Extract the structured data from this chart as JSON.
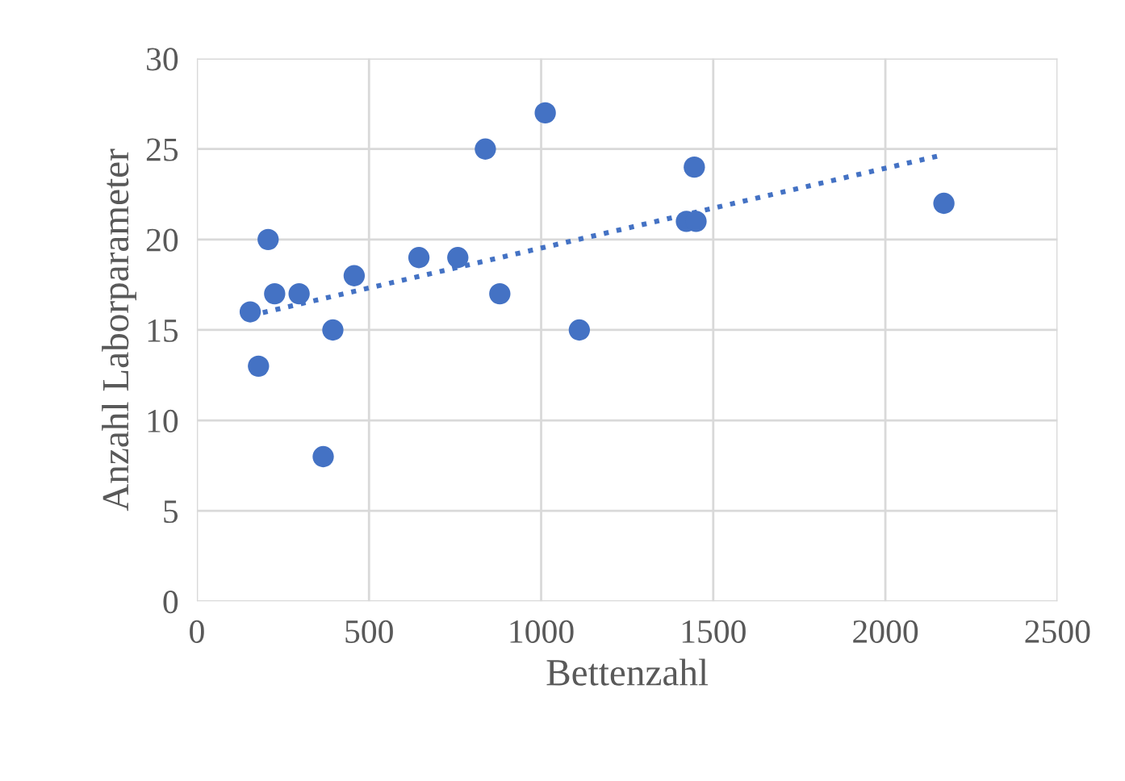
{
  "chart_data": {
    "type": "scatter",
    "xlabel": "Bettenzahl",
    "ylabel": "Anzahl Laborparameter",
    "xlim": [
      0,
      2500
    ],
    "ylim": [
      0,
      30
    ],
    "xticks": [
      0,
      500,
      1000,
      1500,
      2000,
      2500
    ],
    "yticks": [
      0,
      5,
      10,
      15,
      20,
      25,
      30
    ],
    "grid": true,
    "marker": "circle",
    "series": [
      {
        "color": "#4472c4",
        "x": [
          155,
          179,
          207,
          226,
          297,
          367,
          395,
          457,
          645,
          758,
          838,
          880,
          1012,
          1111,
          1422,
          1450,
          1445,
          2170
        ],
        "values": [
          16,
          13,
          20,
          17,
          17,
          8,
          15,
          18,
          19,
          19,
          25,
          17,
          27,
          15,
          21,
          21,
          24,
          22
        ]
      },
      {
        "type": "line",
        "color": "#4472c4",
        "line_style": "dotted",
        "marker": "none",
        "x": [
          155,
          2150
        ],
        "values": [
          15.8,
          24.6
        ]
      }
    ]
  }
}
